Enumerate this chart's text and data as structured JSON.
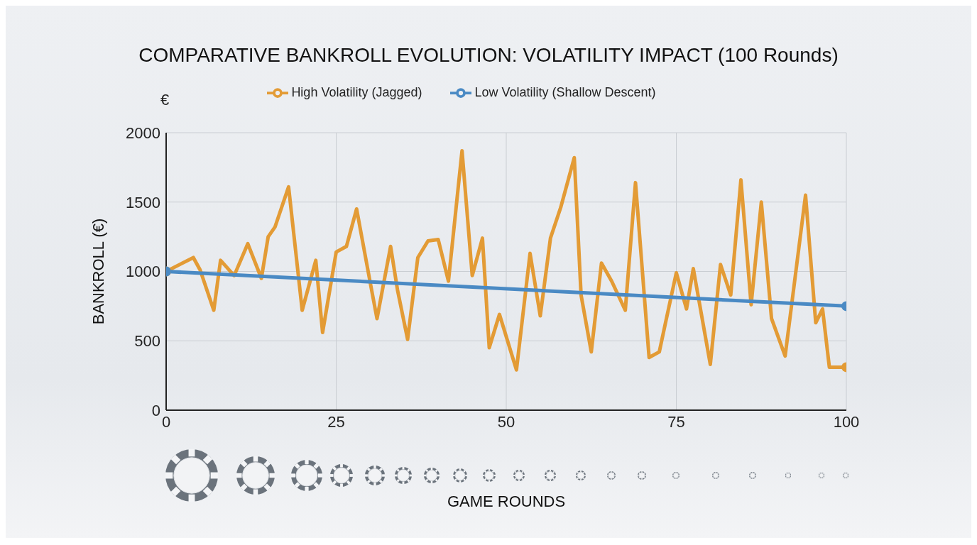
{
  "chart_data": {
    "type": "line",
    "title": "COMPARATIVE BANKROLL EVOLUTION: VOLATILITY IMPACT (100 Rounds)",
    "xlabel": "GAME ROUNDS",
    "ylabel": "BANKROLL (€)",
    "annotations": [
      "€"
    ],
    "series": [
      {
        "name": "High Volatility (Jagged)",
        "color": "#e39b35",
        "x": [
          0,
          4,
          5,
          7,
          8,
          10,
          12,
          14,
          15,
          16,
          18,
          20,
          22,
          23,
          25,
          26.5,
          28,
          30,
          31,
          33,
          34,
          35.5,
          37,
          38.5,
          40,
          41.5,
          43.5,
          45,
          46.5,
          47.5,
          49,
          51.5,
          53.5,
          55,
          56.5,
          58,
          60,
          61,
          62.5,
          64,
          65.5,
          67.5,
          69,
          71,
          72.5,
          73.5,
          75,
          76.5,
          77.5,
          80,
          81.5,
          83,
          84.5,
          86,
          87.5,
          89,
          91,
          94,
          95.5,
          96.5,
          97.5,
          100
        ],
        "values": [
          1000,
          1100,
          1010,
          720,
          1080,
          970,
          1200,
          950,
          1250,
          1320,
          1610,
          720,
          1080,
          560,
          1140,
          1180,
          1450,
          920,
          660,
          1180,
          870,
          510,
          1100,
          1220,
          1230,
          930,
          1870,
          970,
          1240,
          450,
          690,
          290,
          1130,
          680,
          1240,
          1460,
          1820,
          830,
          420,
          1060,
          930,
          720,
          1640,
          380,
          420,
          650,
          990,
          730,
          1020,
          330,
          1050,
          830,
          1660,
          760,
          1500,
          660,
          390,
          1550,
          630,
          730,
          310,
          310
        ]
      },
      {
        "name": "Low Volatility (Shallow Descent)",
        "color": "#4a8ac4",
        "marker": "circle",
        "x": [
          0,
          100
        ],
        "values": [
          1000,
          750
        ]
      }
    ],
    "xlim": [
      0,
      100
    ],
    "xticks": [
      0,
      25,
      50,
      75,
      100
    ],
    "ylim": [
      0,
      2000
    ],
    "yticks": [
      0,
      500,
      1000,
      1500,
      2000
    ],
    "grid": true,
    "legend": "top",
    "line_style": "solid"
  }
}
